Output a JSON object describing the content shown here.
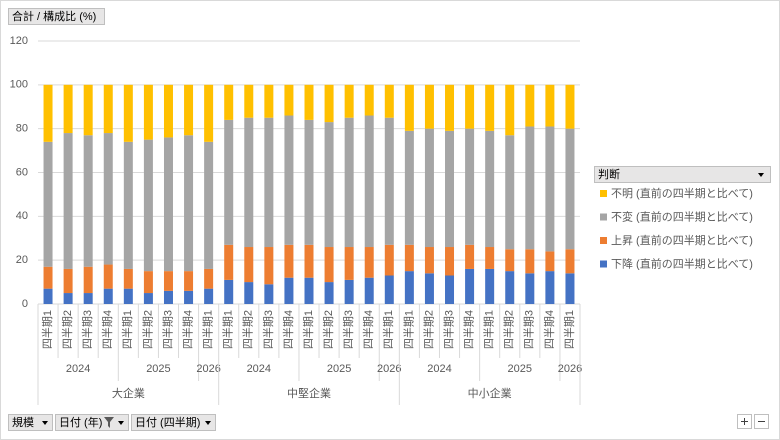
{
  "chart_data": {
    "type": "stacked_bar",
    "value_field": "合計 / 構成比 (%)",
    "legend_title": "判断",
    "axis_fields": [
      "規模",
      "日付 (年)",
      "日付 (四半期)"
    ],
    "groups": [
      {
        "name": "大企業",
        "years": [
          {
            "name": "2024",
            "quarters": [
              "四半期1",
              "四半期2",
              "四半期3",
              "四半期4"
            ]
          },
          {
            "name": "2025",
            "quarters": [
              "四半期1",
              "四半期2",
              "四半期3",
              "四半期4"
            ]
          },
          {
            "name": "2026",
            "quarters": [
              "四半期1"
            ]
          }
        ]
      },
      {
        "name": "中堅企業",
        "years": [
          {
            "name": "2024",
            "quarters": [
              "四半期1",
              "四半期2",
              "四半期3",
              "四半期4"
            ]
          },
          {
            "name": "2025",
            "quarters": [
              "四半期1",
              "四半期2",
              "四半期3",
              "四半期4"
            ]
          },
          {
            "name": "2026",
            "quarters": [
              "四半期1"
            ]
          }
        ]
      },
      {
        "name": "中小企業",
        "years": [
          {
            "name": "2024",
            "quarters": [
              "四半期1",
              "四半期2",
              "四半期3",
              "四半期4"
            ]
          },
          {
            "name": "2025",
            "quarters": [
              "四半期1",
              "四半期2",
              "四半期3",
              "四半期4"
            ]
          },
          {
            "name": "2026",
            "quarters": [
              "四半期1"
            ]
          }
        ]
      }
    ],
    "series": [
      {
        "name": "下降 (直前の四半期と比べて)",
        "color": "#4472c4",
        "values": [
          7,
          5,
          5,
          7,
          7,
          5,
          6,
          6,
          7,
          11,
          10,
          9,
          12,
          12,
          10,
          11,
          12,
          13,
          15,
          14,
          13,
          16,
          16,
          15,
          14,
          15,
          14
        ]
      },
      {
        "name": "上昇 (直前の四半期と比べて)",
        "color": "#ed7d31",
        "values": [
          10,
          11,
          12,
          11,
          9,
          10,
          9,
          9,
          9,
          16,
          16,
          17,
          15,
          15,
          16,
          15,
          14,
          14,
          12,
          12,
          13,
          11,
          10,
          10,
          11,
          9,
          11
        ]
      },
      {
        "name": "不変 (直前の四半期と比べて)",
        "color": "#a5a5a5",
        "values": [
          57,
          62,
          60,
          60,
          58,
          60,
          61,
          62,
          58,
          57,
          59,
          59,
          59,
          57,
          57,
          59,
          60,
          58,
          52,
          54,
          53,
          53,
          53,
          52,
          56,
          57,
          55
        ]
      },
      {
        "name": "不明 (直前の四半期と比べて)",
        "color": "#ffc000",
        "values": [
          26,
          22,
          23,
          22,
          26,
          25,
          24,
          23,
          26,
          16,
          15,
          15,
          14,
          16,
          17,
          15,
          14,
          15,
          21,
          20,
          21,
          20,
          21,
          23,
          19,
          19,
          20
        ]
      }
    ],
    "ylim": [
      0,
      120
    ],
    "yticks": [
      0,
      20,
      40,
      60,
      80,
      100,
      120
    ],
    "grid": true,
    "legend": "right"
  }
}
